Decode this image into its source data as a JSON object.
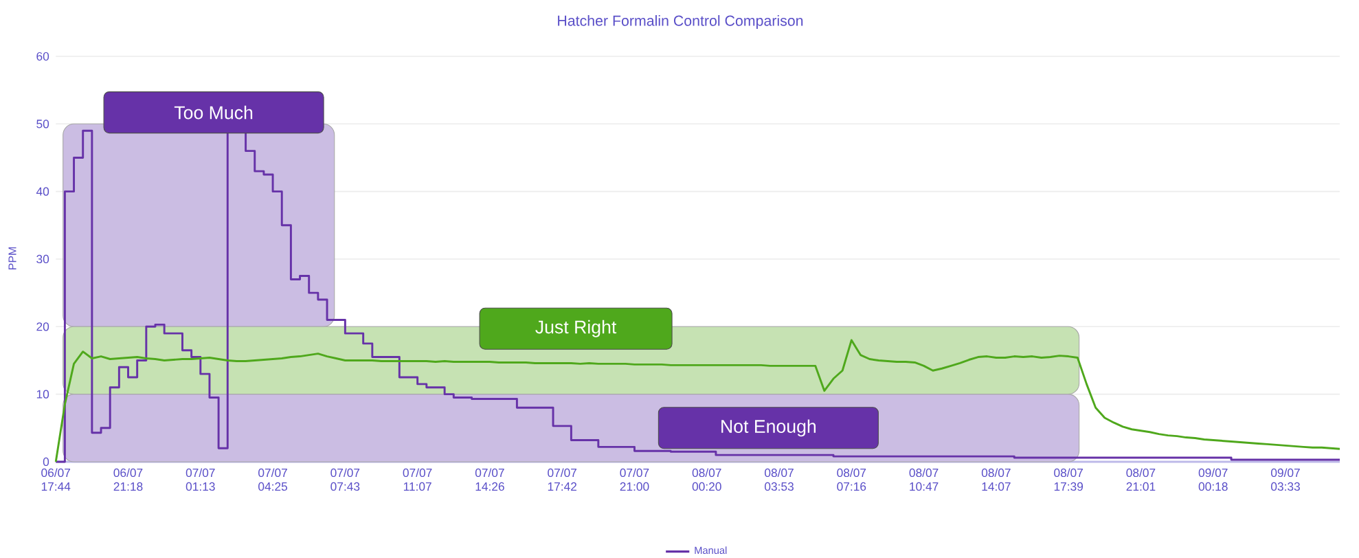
{
  "chart_data": {
    "type": "line",
    "title": "Hatcher Formalin Control Comparison",
    "ylabel": "PPM",
    "ylim": [
      0,
      60
    ],
    "yticks": [
      0,
      10,
      20,
      30,
      40,
      50,
      60
    ],
    "categories": [
      "06/07 17:44",
      null,
      null,
      null,
      null,
      null,
      null,
      null,
      "06/07 21:18",
      null,
      null,
      null,
      null,
      null,
      null,
      null,
      "07/07 01:13",
      null,
      null,
      null,
      null,
      null,
      null,
      null,
      "07/07 04:25",
      null,
      null,
      null,
      null,
      null,
      null,
      null,
      "07/07 07:43",
      null,
      null,
      null,
      null,
      null,
      null,
      null,
      "07/07 11:07",
      null,
      null,
      null,
      null,
      null,
      null,
      null,
      "07/07 14:26",
      null,
      null,
      null,
      null,
      null,
      null,
      null,
      "07/07 17:42",
      null,
      null,
      null,
      null,
      null,
      null,
      null,
      "07/07 21:00",
      null,
      null,
      null,
      null,
      null,
      null,
      null,
      "08/07 00:20",
      null,
      null,
      null,
      null,
      null,
      null,
      null,
      "08/07 03:53",
      null,
      null,
      null,
      null,
      null,
      null,
      null,
      "08/07 07:16",
      null,
      null,
      null,
      null,
      null,
      null,
      null,
      "08/07 10:47",
      null,
      null,
      null,
      null,
      null,
      null,
      null,
      "08/07 14:07",
      null,
      null,
      null,
      null,
      null,
      null,
      null,
      "08/07 17:39",
      null,
      null,
      null,
      null,
      null,
      null,
      null,
      "08/07 21:01",
      null,
      null,
      null,
      null,
      null,
      null,
      null,
      "09/07 00:18",
      null,
      null,
      null,
      null,
      null,
      null,
      null,
      "09/07 03:33",
      null,
      null,
      null,
      null,
      null,
      null
    ],
    "grid": "y",
    "legend": "bottom",
    "bands": [
      {
        "axis": "y",
        "from": 20,
        "to": 50,
        "label": "Too Much",
        "color": "#cbbde3"
      },
      {
        "axis": "y",
        "from": 10,
        "to": 20,
        "label": "Just Right",
        "color": "#c6e2b3"
      },
      {
        "axis": "y",
        "from": 0,
        "to": 10,
        "label": "Not Enough",
        "color": "#cbbde3"
      }
    ],
    "series": [
      {
        "name": "Manual",
        "type": "step",
        "color": "#6632a8",
        "values": [
          0,
          40,
          45,
          49,
          4.3,
          5,
          11,
          14,
          12.5,
          15,
          20,
          20.3,
          19,
          19,
          16.5,
          15.5,
          13,
          9.5,
          2,
          49,
          49,
          46,
          43,
          42.5,
          40,
          35,
          27,
          27.5,
          25,
          24,
          21,
          21,
          19,
          19,
          17.5,
          15.5,
          15.5,
          15.5,
          12.5,
          12.5,
          11.5,
          11,
          11,
          10,
          9.5,
          9.5,
          9.3,
          9.3,
          9.3,
          9.3,
          9.3,
          8,
          8,
          8,
          8,
          5.3,
          5.3,
          3.2,
          3.2,
          3.2,
          2.2,
          2.2,
          2.2,
          2.2,
          1.6,
          1.6,
          1.6,
          1.6,
          1.5,
          1.5,
          1.5,
          1.5,
          1.5,
          1,
          1,
          1,
          1,
          1,
          1,
          1,
          1,
          1,
          1,
          1,
          1,
          1,
          0.8,
          0.8,
          0.8,
          0.8,
          0.8,
          0.8,
          0.8,
          0.8,
          0.8,
          0.8,
          0.8,
          0.8,
          0.8,
          0.8,
          0.8,
          0.8,
          0.8,
          0.8,
          0.8,
          0.8,
          0.6,
          0.6,
          0.6,
          0.6,
          0.6,
          0.6,
          0.6,
          0.6,
          0.6,
          0.6,
          0.6,
          0.6,
          0.6,
          0.6,
          0.6,
          0.6,
          0.6,
          0.6,
          0.6,
          0.6,
          0.6,
          0.6,
          0.6,
          0.6,
          0.3,
          0.3,
          0.3,
          0.3,
          0.3,
          0.3,
          0.3,
          0.3,
          0.3,
          0.3,
          0.3,
          0.3,
          0.3
        ]
      },
      {
        "color": "#4fa81c",
        "values": [
          0,
          8.5,
          14.5,
          16.3,
          15.3,
          15.6,
          15.2,
          15.3,
          15.4,
          15.5,
          15.3,
          15.2,
          15,
          15.1,
          15.2,
          15.2,
          15.3,
          15.4,
          15.2,
          15,
          14.9,
          14.9,
          15,
          15.1,
          15.2,
          15.3,
          15.5,
          15.6,
          15.8,
          16,
          15.6,
          15.3,
          15,
          15,
          15,
          15,
          14.9,
          14.9,
          14.9,
          14.9,
          14.9,
          14.9,
          14.8,
          14.9,
          14.8,
          14.8,
          14.8,
          14.8,
          14.8,
          14.7,
          14.7,
          14.7,
          14.7,
          14.6,
          14.6,
          14.6,
          14.6,
          14.6,
          14.5,
          14.6,
          14.5,
          14.5,
          14.5,
          14.5,
          14.4,
          14.4,
          14.4,
          14.4,
          14.3,
          14.3,
          14.3,
          14.3,
          14.3,
          14.3,
          14.3,
          14.3,
          14.3,
          14.3,
          14.3,
          14.2,
          14.2,
          14.2,
          14.2,
          14.2,
          14.2,
          10.5,
          12.3,
          13.5,
          18,
          15.8,
          15.2,
          15,
          14.9,
          14.8,
          14.8,
          14.7,
          14.2,
          13.5,
          13.8,
          14.2,
          14.6,
          15.1,
          15.5,
          15.6,
          15.4,
          15.4,
          15.6,
          15.5,
          15.6,
          15.4,
          15.5,
          15.7,
          15.6,
          15.4,
          11.5,
          8,
          6.5,
          5.8,
          5.2,
          4.8,
          4.6,
          4.4,
          4.1,
          3.9,
          3.8,
          3.6,
          3.5,
          3.3,
          3.2,
          3.1,
          3,
          2.9,
          2.8,
          2.7,
          2.6,
          2.5,
          2.4,
          2.3,
          2.2,
          2.1,
          2.1,
          2,
          1.9
        ]
      }
    ]
  }
}
